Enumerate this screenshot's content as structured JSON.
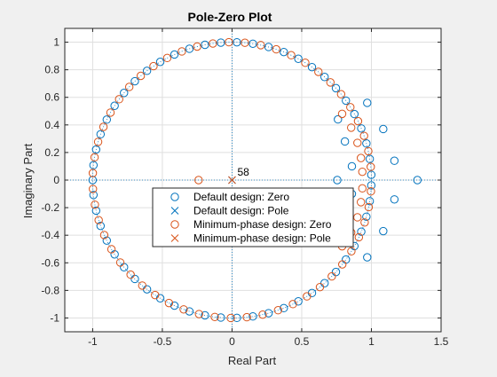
{
  "chart_data": {
    "type": "scatter",
    "title": "Pole-Zero Plot",
    "xlabel": "Real Part",
    "ylabel": "Imaginary Part",
    "xlim": [
      -1.2,
      1.5
    ],
    "ylim": [
      -1.1,
      1.1
    ],
    "xticks": [
      -1,
      -0.5,
      0,
      0.5,
      1,
      1.5
    ],
    "xtick_labels": [
      "-1",
      "-0.5",
      "0",
      "0.5",
      "1",
      "1.5"
    ],
    "yticks": [
      -1,
      -0.8,
      -0.6,
      -0.4,
      -0.2,
      0,
      0.2,
      0.4,
      0.6,
      0.8,
      1
    ],
    "ytick_labels": [
      "-1",
      "-0.8",
      "-0.6",
      "-0.4",
      "-0.2",
      "0",
      "0.2",
      "0.4",
      "0.6",
      "0.8",
      "1"
    ],
    "grid": true,
    "unit_circle": true,
    "legend_position": "center",
    "pole_multiplicity_label": "58",
    "colors": {
      "default": "#0072bd",
      "minphase": "#d95319"
    },
    "series": [
      {
        "name": "Default design: Zero",
        "marker": "circle",
        "color": "#0072bd",
        "unit_circle_angles_deg": [
          2.2,
          8.8,
          15.4,
          22,
          28.6,
          35.2,
          41.8,
          48.4,
          55,
          61.6,
          68.2,
          74.8,
          81.4,
          88,
          94.6,
          101.2,
          107.8,
          114.4,
          121,
          127.6,
          134.2,
          140.8,
          147.4,
          154,
          160.6,
          167.2,
          173.8,
          180,
          186.2,
          192.8,
          199.4,
          206,
          212.6,
          219.2,
          225.8,
          232.4,
          239,
          245.6,
          252.2,
          258.8,
          265.4,
          272,
          278.6,
          285.2,
          291.8,
          298.4,
          305,
          311.6,
          318.2,
          324.8,
          331.4,
          338,
          344.6,
          351.2,
          357.8
        ],
        "points": [
          [
            0.755,
            0
          ],
          [
            1.33,
            0
          ],
          [
            0.97,
            0.56
          ],
          [
            0.97,
            -0.56
          ],
          [
            1.085,
            0.37
          ],
          [
            1.085,
            -0.37
          ],
          [
            1.165,
            0.14
          ],
          [
            1.165,
            -0.14
          ],
          [
            0.76,
            0.44
          ],
          [
            0.76,
            -0.44
          ],
          [
            0.81,
            0.28
          ],
          [
            0.81,
            -0.28
          ],
          [
            0.86,
            0.1
          ],
          [
            0.86,
            -0.1
          ]
        ]
      },
      {
        "name": "Default design: Pole",
        "marker": "x",
        "color": "#0072bd",
        "points": [
          [
            0,
            0
          ]
        ]
      },
      {
        "name": "Minimum-phase design: Zero",
        "marker": "circle",
        "color": "#d95319",
        "unit_circle_angles_deg": [
          5.5,
          12.1,
          18.7,
          25.3,
          31.9,
          38.5,
          45.1,
          51.7,
          58.3,
          64.9,
          71.5,
          78.1,
          84.7,
          91.3,
          97.9,
          104.5,
          111.1,
          117.7,
          124.3,
          130.9,
          137.5,
          144.1,
          150.7,
          157.3,
          163.9,
          170.5,
          177.1,
          183.7,
          190.3,
          196.9,
          203.5,
          210.1,
          216.7,
          223.3,
          229.9,
          236.5,
          243.1,
          249.7,
          256.3,
          262.9,
          269.5,
          276.1,
          282.7,
          289.3,
          295.9,
          302.5,
          309.1,
          315.7,
          322.3,
          328.9,
          335.5,
          342.1,
          348.7,
          355.3
        ],
        "points": [
          [
            -0.24,
            0
          ],
          [
            0.935,
            0.06
          ],
          [
            0.935,
            -0.06
          ],
          [
            0.925,
            0.16
          ],
          [
            0.925,
            -0.16
          ],
          [
            0.9,
            0.27
          ],
          [
            0.9,
            -0.27
          ],
          [
            0.855,
            0.38
          ],
          [
            0.855,
            -0.38
          ],
          [
            0.79,
            0.48
          ],
          [
            0.79,
            -0.48
          ]
        ]
      },
      {
        "name": "Minimum-phase design: Pole",
        "marker": "x",
        "color": "#d95319",
        "points": [
          [
            0,
            0
          ]
        ]
      }
    ]
  }
}
